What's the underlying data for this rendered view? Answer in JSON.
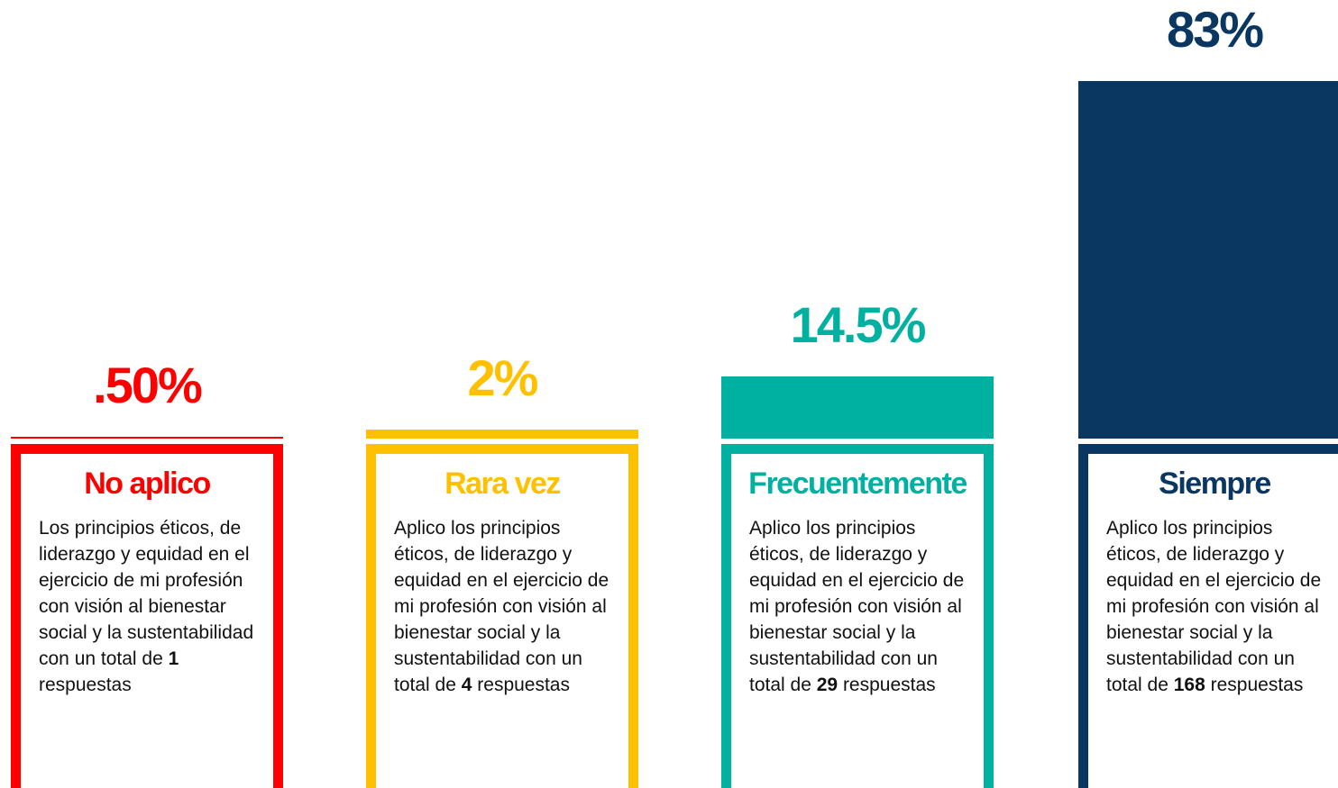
{
  "chart_data": {
    "type": "bar",
    "categories": [
      "No aplico",
      "Rara vez",
      "Frecuentemente",
      "Siempre"
    ],
    "values": [
      0.5,
      2,
      14.5,
      83
    ],
    "value_labels": [
      ".50%",
      "2%",
      "14.5%",
      "83%"
    ],
    "colors": [
      "#ff0000",
      "#ffc000",
      "#00b0a0",
      "#0a3761"
    ],
    "descriptions": [
      {
        "text": "Los principios éticos, de liderazgo y equidad en el ejercicio de mi profesión con visión al bienestar social y la sustentabilidad con un total de",
        "count": 1,
        "suffix": "respuestas"
      },
      {
        "text": "Aplico los principios éticos, de liderazgo y equidad en el ejercicio de mi profesión con visión al bienestar social y la sustentabilidad con un total de",
        "count": 4,
        "suffix": "respuestas"
      },
      {
        "text": "Aplico los principios éticos, de liderazgo y equidad en el ejercicio de mi profesión con visión al bienestar social y la sustentabilidad con un total de",
        "count": 29,
        "suffix": "respuestas"
      },
      {
        "text": "Aplico los principios éticos, de liderazgo y equidad en el ejercicio de mi profesión con visión al bienestar social y la sustentabilidad con un total de",
        "count": 168,
        "suffix": "respuestas"
      }
    ]
  }
}
